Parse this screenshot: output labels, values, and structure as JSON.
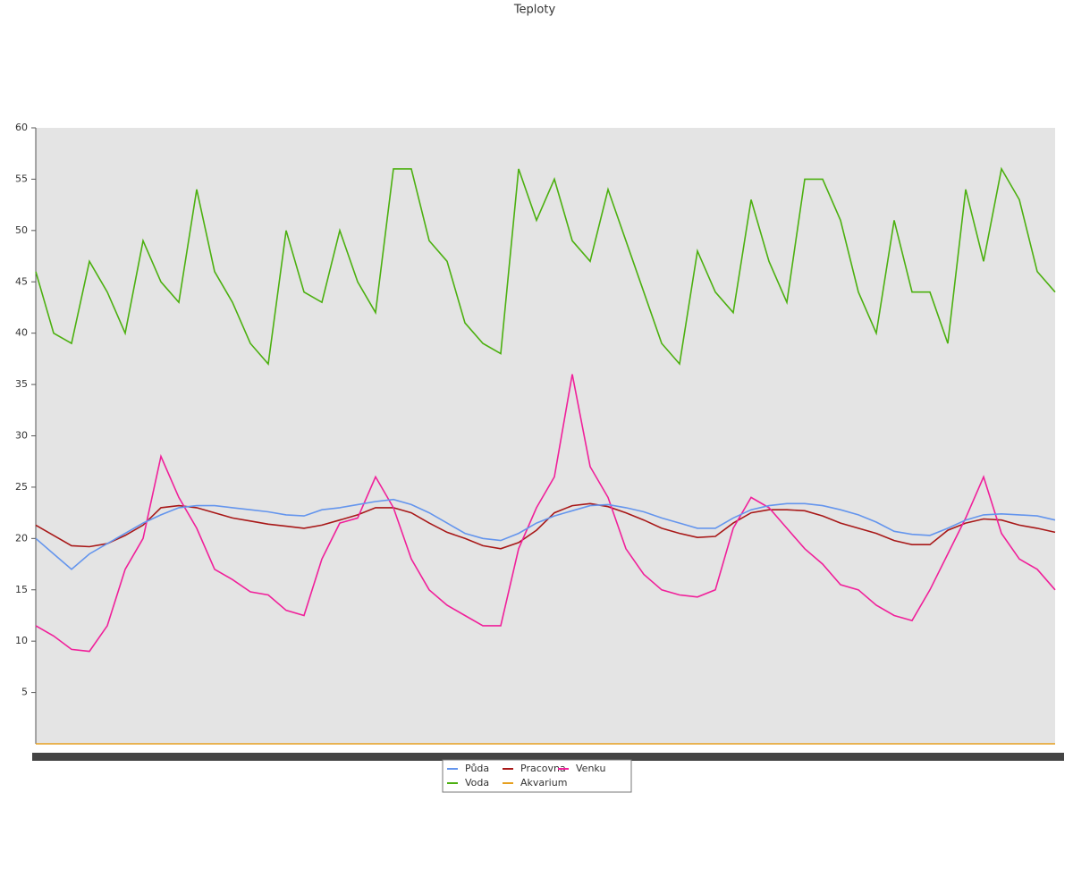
{
  "chart_data": {
    "type": "line",
    "title": "Teploty",
    "categories": [
      null,
      null,
      null,
      null,
      null,
      null,
      null,
      null,
      null,
      null,
      null,
      null,
      null,
      null,
      null,
      null,
      null,
      null,
      null,
      null,
      null,
      null,
      null,
      null,
      null,
      null,
      null,
      null,
      null,
      null,
      null,
      null,
      null,
      null,
      null,
      null,
      null,
      null,
      null,
      null,
      null,
      null,
      null,
      null,
      null,
      null,
      null,
      null,
      null,
      null,
      null,
      null,
      null,
      null,
      null,
      null,
      null,
      null
    ],
    "ylim": [
      0,
      60
    ],
    "yticks": [
      5,
      10,
      15,
      20,
      25,
      30,
      35,
      40,
      45,
      50,
      55,
      60
    ],
    "grid": false,
    "legend": "bottom",
    "series": [
      {
        "name": "Půda",
        "color": "#6495ed",
        "values": [
          20,
          18.5,
          17,
          18.5,
          19.5,
          20.5,
          21.5,
          22.3,
          23,
          23.2,
          23.2,
          23,
          22.8,
          22.6,
          22.3,
          22.2,
          22.8,
          23,
          23.3,
          23.6,
          23.8,
          23.3,
          22.5,
          21.5,
          20.5,
          20,
          19.8,
          20.5,
          21.5,
          22.2,
          22.7,
          23.2,
          23.3,
          23,
          22.6,
          22,
          21.5,
          21,
          21,
          22,
          22.8,
          23.2,
          23.4,
          23.4,
          23.2,
          22.8,
          22.3,
          21.6,
          20.7,
          20.4,
          20.3,
          21,
          21.8,
          22.3,
          22.4,
          22.3,
          22.2,
          21.8
        ]
      },
      {
        "name": "Pracovna",
        "color": "#a81818",
        "values": [
          21.3,
          20.3,
          19.3,
          19.2,
          19.5,
          20.3,
          21.3,
          23,
          23.2,
          23,
          22.5,
          22,
          21.7,
          21.4,
          21.2,
          21,
          21.3,
          21.8,
          22.3,
          23,
          23,
          22.5,
          21.5,
          20.6,
          20,
          19.3,
          19,
          19.6,
          20.8,
          22.5,
          23.2,
          23.4,
          23.1,
          22.5,
          21.8,
          21,
          20.5,
          20.1,
          20.2,
          21.5,
          22.5,
          22.8,
          22.8,
          22.7,
          22.2,
          21.5,
          21,
          20.5,
          19.8,
          19.4,
          19.4,
          20.8,
          21.5,
          21.9,
          21.8,
          21.3,
          21,
          20.6
        ]
      },
      {
        "name": "Venku",
        "color": "#f0209a",
        "values": [
          11.5,
          10.5,
          9.2,
          9,
          11.5,
          17,
          20,
          28,
          24,
          21,
          17,
          16,
          14.8,
          14.5,
          13,
          12.5,
          18,
          21.5,
          22,
          26,
          23,
          18,
          15,
          13.5,
          12.5,
          11.5,
          11.5,
          19,
          23,
          26,
          36,
          27,
          24,
          19,
          16.5,
          15,
          14.5,
          14.3,
          15,
          21,
          24,
          23,
          21,
          19,
          17.5,
          15.5,
          15,
          13.5,
          12.5,
          12,
          15,
          18.5,
          22,
          26,
          20.5,
          18,
          17,
          15
        ]
      },
      {
        "name": "Voda",
        "color": "#4cb010",
        "values": [
          46,
          40,
          39,
          47,
          44,
          40,
          49,
          45,
          43,
          54,
          46,
          43,
          39,
          37,
          50,
          44,
          43,
          50,
          45,
          42,
          56,
          56,
          49,
          47,
          41,
          39,
          38,
          56,
          51,
          55,
          49,
          47,
          54,
          49,
          44,
          39,
          37,
          48,
          44,
          42,
          53,
          47,
          43,
          55,
          55,
          51,
          44,
          40,
          51,
          44,
          44,
          39,
          54,
          47,
          56,
          53,
          46,
          44
        ]
      },
      {
        "name": "Akvarium",
        "color": "#e6a020",
        "values": [
          0,
          0,
          0,
          0,
          0,
          0,
          0,
          0,
          0,
          0,
          0,
          0,
          0,
          0,
          0,
          0,
          0,
          0,
          0,
          0,
          0,
          0,
          0,
          0,
          0,
          0,
          0,
          0,
          0,
          0,
          0,
          0,
          0,
          0,
          0,
          0,
          0,
          0,
          0,
          0,
          0,
          0,
          0,
          0,
          0,
          0,
          0,
          0,
          0,
          0,
          0,
          0,
          0,
          0,
          0,
          0,
          0,
          0
        ]
      }
    ]
  }
}
